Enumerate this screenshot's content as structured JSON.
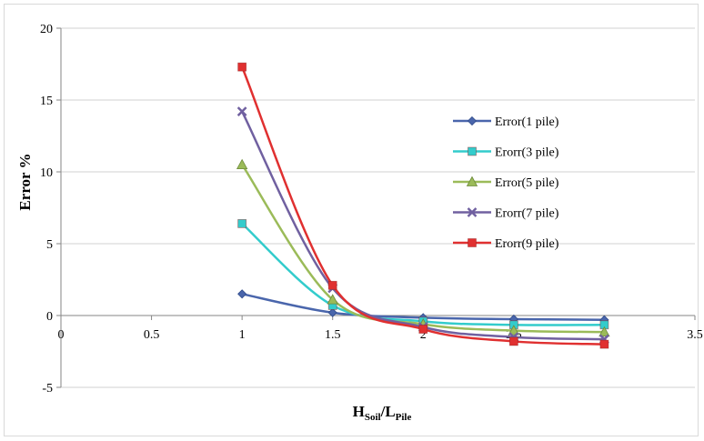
{
  "chart_data": {
    "type": "line",
    "title": "",
    "xlabel_main": "H",
    "xlabel_sub1": "Soil",
    "xlabel_sep": "/L",
    "xlabel_sub2": "Pile",
    "ylabel": "Error %",
    "xlim": [
      0,
      3.5
    ],
    "ylim": [
      -5,
      20
    ],
    "x_ticks": [
      "0",
      "0.5",
      "1",
      "1.5",
      "2",
      "2.5",
      "3",
      "3.5"
    ],
    "y_ticks": [
      "20",
      "15",
      "10",
      "5",
      "0",
      "-5"
    ],
    "grid": "horizontal",
    "legend_position": "right",
    "x": [
      1,
      1.5,
      2,
      2.5,
      3
    ],
    "series": [
      {
        "name": "Error(1 pile)",
        "values": [
          1.5,
          0.2,
          -0.15,
          -0.25,
          -0.3
        ],
        "color": "#4a66ac",
        "marker": "diamond"
      },
      {
        "name": "Erorr(3 pile)",
        "values": [
          6.4,
          0.7,
          -0.4,
          -0.65,
          -0.65
        ],
        "color": "#33cccc",
        "marker": "square"
      },
      {
        "name": "Error(5 pile)",
        "values": [
          10.5,
          1.1,
          -0.6,
          -1.05,
          -1.15
        ],
        "color": "#9bbb59",
        "marker": "triangle"
      },
      {
        "name": "Erorr(7 pile)",
        "values": [
          14.2,
          1.9,
          -0.8,
          -1.5,
          -1.65
        ],
        "color": "#7060a0",
        "marker": "x"
      },
      {
        "name": "Erorr(9 pile)",
        "values": [
          17.3,
          2.1,
          -0.95,
          -1.8,
          -2.0
        ],
        "color": "#e03030",
        "marker": "square"
      }
    ]
  }
}
